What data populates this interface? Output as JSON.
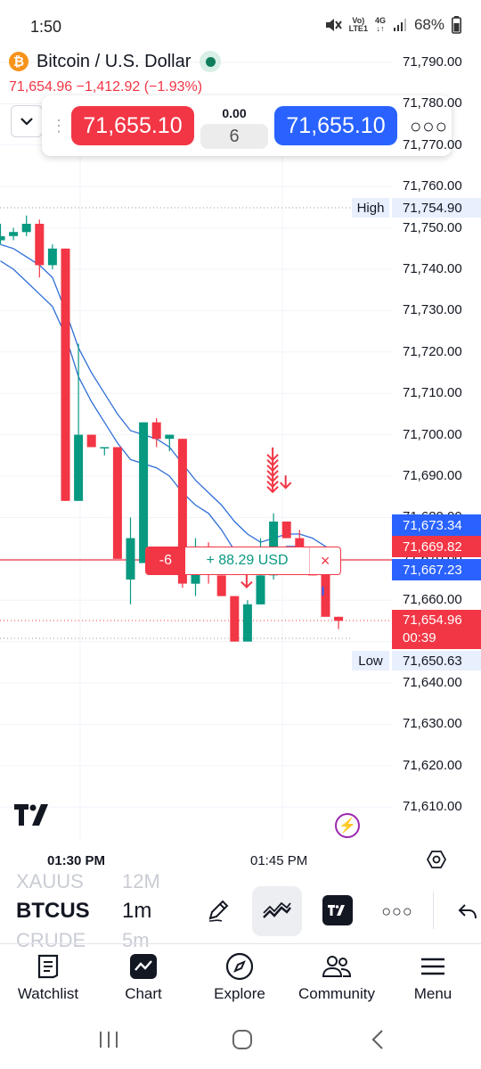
{
  "status_bar": {
    "time": "1:50",
    "volte": "Vo)",
    "lte": "LTE1",
    "network": "4G",
    "battery": "68%"
  },
  "header": {
    "symbol_icon": "bitcoin-icon",
    "title": "Bitcoin / U.S. Dollar",
    "price_change": "71,654.96  −1,412.92 (−1.93%)"
  },
  "trade_panel": {
    "sell_price": "71,655.10",
    "buy_price": "71,655.10",
    "spread": "0.00",
    "quantity": "6"
  },
  "price_axis": {
    "ticks": [
      "71,790.00",
      "71,780.00",
      "71,770.00",
      "71,760.00",
      "71,750.00",
      "71,740.00",
      "71,730.00",
      "71,720.00",
      "71,710.00",
      "71,700.00",
      "71,690.00",
      "71,680.00",
      "71,670.00",
      "71,660.00",
      "71,650.00",
      "71,640.00",
      "71,630.00",
      "71,620.00",
      "71,610.00"
    ]
  },
  "high_marker": {
    "label": "High",
    "price": "71,754.90"
  },
  "low_marker": {
    "label": "Low",
    "price": "71,650.63"
  },
  "price_tags": {
    "blue_top": "71,673.34",
    "red_mid": "71,669.82",
    "blue_bottom": "71,667.23",
    "current": "71,654.96",
    "countdown": "00:39"
  },
  "position": {
    "qty": "-6",
    "pnl": "+ 88.29 USD",
    "close": "×"
  },
  "time_axis": {
    "labels": [
      "01:30 PM",
      "01:45 PM"
    ]
  },
  "toolbar": {
    "symbol_prev": "XAUUS",
    "symbol": "BTCUS",
    "symbol_next": "CRUDE",
    "interval_prev": "12M",
    "interval": "1m",
    "interval_next": "5m"
  },
  "bottom_nav": [
    {
      "label": "Watchlist",
      "icon": "watchlist-icon"
    },
    {
      "label": "Chart",
      "icon": "chart-icon"
    },
    {
      "label": "Explore",
      "icon": "compass-icon"
    },
    {
      "label": "Community",
      "icon": "community-icon"
    },
    {
      "label": "Menu",
      "icon": "menu-icon"
    }
  ],
  "colors": {
    "up": "#089981",
    "down": "#f23645",
    "accent_blue": "#2962ff",
    "ma_line": "#2f6fd6"
  },
  "chart_data": {
    "type": "candlestick",
    "candles": [
      {
        "o": 71747,
        "h": 71751,
        "l": 71746,
        "c": 71748
      },
      {
        "o": 71748,
        "h": 71750,
        "l": 71747,
        "c": 71749
      },
      {
        "o": 71749,
        "h": 71753,
        "l": 71748,
        "c": 71751
      },
      {
        "o": 71751,
        "h": 71752,
        "l": 71738,
        "c": 71741
      },
      {
        "o": 71741,
        "h": 71746,
        "l": 71740,
        "c": 71745
      },
      {
        "o": 71745,
        "h": 71745,
        "l": 71684,
        "c": 71684
      },
      {
        "o": 71684,
        "h": 71722,
        "l": 71684,
        "c": 71700
      },
      {
        "o": 71700,
        "h": 71700,
        "l": 71697,
        "c": 71697
      },
      {
        "o": 71697,
        "h": 71697,
        "l": 71695,
        "c": 71697
      },
      {
        "o": 71697,
        "h": 71697,
        "l": 71670,
        "c": 71670
      },
      {
        "o": 71665,
        "h": 71680,
        "l": 71659,
        "c": 71675
      },
      {
        "o": 71669,
        "h": 71703,
        "l": 71669,
        "c": 71703
      },
      {
        "o": 71703,
        "h": 71704,
        "l": 71697,
        "c": 71699
      },
      {
        "o": 71699,
        "h": 71700,
        "l": 71696,
        "c": 71700
      },
      {
        "o": 71699,
        "h": 71699,
        "l": 71663,
        "c": 71664
      },
      {
        "o": 71664,
        "h": 71675,
        "l": 71661,
        "c": 71673
      },
      {
        "o": 71673,
        "h": 71674,
        "l": 71664,
        "c": 71671
      },
      {
        "o": 71666,
        "h": 71666,
        "l": 71661,
        "c": 71661
      },
      {
        "o": 71661,
        "h": 71661,
        "l": 71650,
        "c": 71650
      },
      {
        "o": 71650,
        "h": 71660,
        "l": 71650,
        "c": 71659
      },
      {
        "o": 71659,
        "h": 71675,
        "l": 71659,
        "c": 71666
      },
      {
        "o": 71666,
        "h": 71681,
        "l": 71665,
        "c": 71679
      },
      {
        "o": 71679,
        "h": 71679,
        "l": 71675,
        "c": 71675
      },
      {
        "o": 71675,
        "h": 71677,
        "l": 71671,
        "c": 71671
      },
      {
        "o": 71671,
        "h": 71671,
        "l": 71666,
        "c": 71666
      },
      {
        "o": 71668,
        "h": 71668,
        "l": 71656,
        "c": 71656
      },
      {
        "o": 71656,
        "h": 71656,
        "l": 71653,
        "c": 71655
      }
    ],
    "ma_fast": [
      71742,
      71740,
      71737,
      71734,
      71731,
      71724,
      71714,
      71708,
      71703,
      71698,
      71694,
      71693,
      71692,
      71690,
      71686,
      71683,
      71681,
      71677,
      71672,
      71669,
      71668,
      71671,
      71673,
      71673,
      71672,
      71670,
      71667
    ],
    "ma_slow": [
      71746,
      71745,
      71743,
      71741,
      71738,
      71730,
      71721,
      71715,
      71710,
      71705,
      71701,
      71700,
      71699,
      71697,
      71693,
      71689,
      71686,
      71683,
      71679,
      71676,
      71674,
      71675,
      71676,
      71676,
      71675,
      71673,
      71671
    ],
    "ylim": [
      71605,
      71795
    ],
    "sell_signals": [
      {
        "bar": 21,
        "price": 71684,
        "count": 7
      },
      {
        "bar": 22,
        "price": 71685,
        "count": 1
      },
      {
        "bar": 19,
        "price": 71661,
        "count": 1
      }
    ],
    "buy_price_marker": {
      "bar": 25,
      "price": 71662
    }
  }
}
